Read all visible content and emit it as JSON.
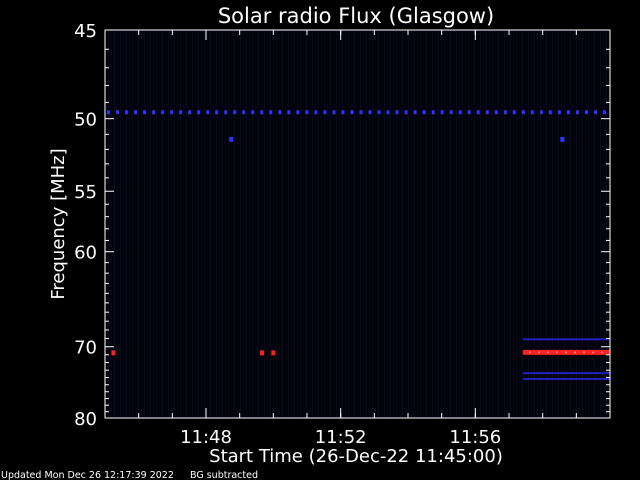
{
  "chart_data": {
    "type": "heatmap",
    "title": "Solar radio Flux (Glasgow)",
    "xlabel": "Start Time (26-Dec-22 11:45:00)",
    "ylabel": "Frequency [MHz]",
    "x_range_minutes": [
      "11:45:00",
      "12:00:00"
    ],
    "x_tick_labels": [
      "11:48",
      "11:52",
      "11:56"
    ],
    "x_ticks_minutes": [
      3,
      7,
      11
    ],
    "y_ticks": [
      45,
      50,
      55,
      60,
      70,
      80
    ],
    "y_tick_labels": [
      "45",
      "50",
      "55",
      "60",
      "70",
      "80"
    ],
    "y_scale": "reciprocal",
    "ylim": [
      45,
      80
    ],
    "grid": false,
    "background_color": "#000000",
    "colors": {
      "frame": "#ffffff",
      "background_noise": "#050518",
      "weak": "#2020c0",
      "medium": "#3030ff",
      "strong": "#ff2020"
    },
    "features": [
      {
        "kind": "continuous_line",
        "freq_mhz": 49.6,
        "from": "11:45:00",
        "to": "12:00:00",
        "intensity": "medium"
      },
      {
        "kind": "dot",
        "freq_mhz": 51.3,
        "time": "11:48:45",
        "intensity": "medium"
      },
      {
        "kind": "dot",
        "freq_mhz": 51.3,
        "time": "11:58:35",
        "intensity": "medium"
      },
      {
        "kind": "dot",
        "freq_mhz": 70.7,
        "time": "11:45:15",
        "intensity": "strong"
      },
      {
        "kind": "dot",
        "freq_mhz": 70.7,
        "time": "11:49:40",
        "intensity": "strong"
      },
      {
        "kind": "dot",
        "freq_mhz": 70.7,
        "time": "11:50:00",
        "intensity": "strong"
      },
      {
        "kind": "band",
        "freq_mhz": 70.7,
        "from": "11:57:25",
        "to": "12:00:00",
        "intensity": "strong"
      },
      {
        "kind": "band",
        "freq_mhz": 69.1,
        "from": "11:57:25",
        "to": "12:00:00",
        "intensity": "weak"
      },
      {
        "kind": "band",
        "freq_mhz": 73.4,
        "from": "11:57:25",
        "to": "12:00:00",
        "intensity": "weak"
      },
      {
        "kind": "band",
        "freq_mhz": 74.2,
        "from": "11:57:25",
        "to": "12:00:00",
        "intensity": "weak"
      }
    ]
  },
  "footer": {
    "updated": "Updated Mon Dec 26 12:17:39 2022",
    "note": "BG subtracted"
  }
}
